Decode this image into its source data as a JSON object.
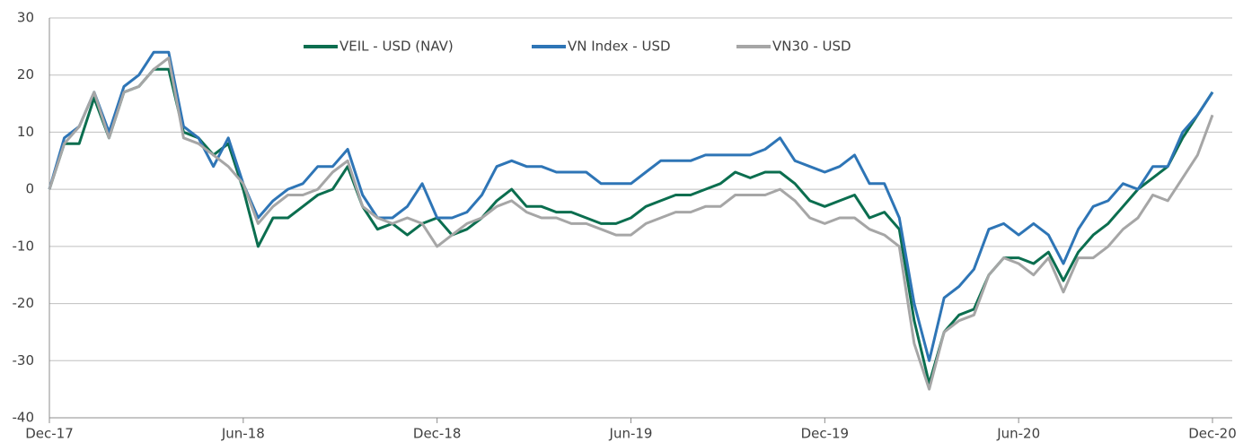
{
  "chart_data": {
    "type": "line",
    "categories": [
      "Dec-17",
      null,
      null,
      null,
      null,
      null,
      null,
      null,
      null,
      null,
      null,
      null,
      null,
      "Jun-18",
      null,
      null,
      null,
      null,
      null,
      null,
      null,
      null,
      null,
      null,
      null,
      null,
      "Dec-18",
      null,
      null,
      null,
      null,
      null,
      null,
      null,
      null,
      null,
      null,
      null,
      null,
      "Jun-19",
      null,
      null,
      null,
      null,
      null,
      null,
      null,
      null,
      null,
      null,
      null,
      null,
      "Dec-19",
      null,
      null,
      null,
      null,
      null,
      null,
      null,
      null,
      null,
      null,
      null,
      null,
      "Jun-20",
      null,
      null,
      null,
      null,
      null,
      null,
      null,
      null,
      null,
      null,
      null,
      null,
      "Dec-20"
    ],
    "series": [
      {
        "name": "VEIL - USD (NAV)",
        "color": "#0b6e4f",
        "values": [
          0,
          8,
          8,
          16,
          9,
          17,
          18,
          21,
          21,
          10,
          9,
          6,
          8,
          0,
          -10,
          -5,
          -5,
          -3,
          -1,
          0,
          4,
          -3,
          -7,
          -6,
          -8,
          -6,
          -5,
          -8,
          -7,
          -5,
          -2,
          0,
          -3,
          -3,
          -4,
          -4,
          -5,
          -6,
          -6,
          -5,
          -3,
          -2,
          -1,
          -1,
          0,
          1,
          3,
          2,
          3,
          3,
          1,
          -2,
          -3,
          -2,
          -1,
          -5,
          -4,
          -7,
          -23,
          -34,
          -25,
          -22,
          -21,
          -15,
          -12,
          -12,
          -13,
          -11,
          -16,
          -11,
          -8,
          -6,
          -3,
          0,
          2,
          4,
          9,
          13,
          17
        ]
      },
      {
        "name": "VN Index - USD",
        "color": "#2e75b6",
        "values": [
          0,
          9,
          11,
          17,
          10,
          18,
          20,
          24,
          24,
          11,
          9,
          4,
          9,
          1,
          -5,
          -2,
          0,
          1,
          4,
          4,
          7,
          -1,
          -5,
          -5,
          -3,
          1,
          -5,
          -5,
          -4,
          -1,
          4,
          5,
          4,
          4,
          3,
          3,
          3,
          1,
          1,
          1,
          3,
          5,
          5,
          5,
          6,
          6,
          6,
          6,
          7,
          9,
          5,
          4,
          3,
          4,
          6,
          1,
          1,
          -5,
          -20,
          -30,
          -19,
          -17,
          -14,
          -7,
          -6,
          -8,
          -6,
          -8,
          -13,
          -7,
          -3,
          -2,
          1,
          0,
          4,
          4,
          10,
          13,
          17
        ]
      },
      {
        "name": "VN30 - USD",
        "color": "#a6a6a6",
        "values": [
          0,
          8,
          11,
          17,
          9,
          17,
          18,
          21,
          23,
          9,
          8,
          6,
          4,
          1,
          -6,
          -3,
          -1,
          -1,
          0,
          3,
          5,
          -3,
          -5,
          -6,
          -5,
          -6,
          -10,
          -8,
          -6,
          -5,
          -3,
          -2,
          -4,
          -5,
          -5,
          -6,
          -6,
          -7,
          -8,
          -8,
          -6,
          -5,
          -4,
          -4,
          -3,
          -3,
          -1,
          -1,
          -1,
          0,
          -2,
          -5,
          -6,
          -5,
          -5,
          -7,
          -8,
          -10,
          -27,
          -35,
          -25,
          -23,
          -22,
          -15,
          -12,
          -13,
          -15,
          -12,
          -18,
          -12,
          -12,
          -10,
          -7,
          -5,
          -1,
          -2,
          2,
          6,
          13
        ]
      }
    ],
    "ylim": [
      -40,
      30
    ],
    "yticks": [
      -40,
      -30,
      -20,
      -10,
      0,
      10,
      20,
      30
    ],
    "grid": true,
    "legend": "top"
  }
}
